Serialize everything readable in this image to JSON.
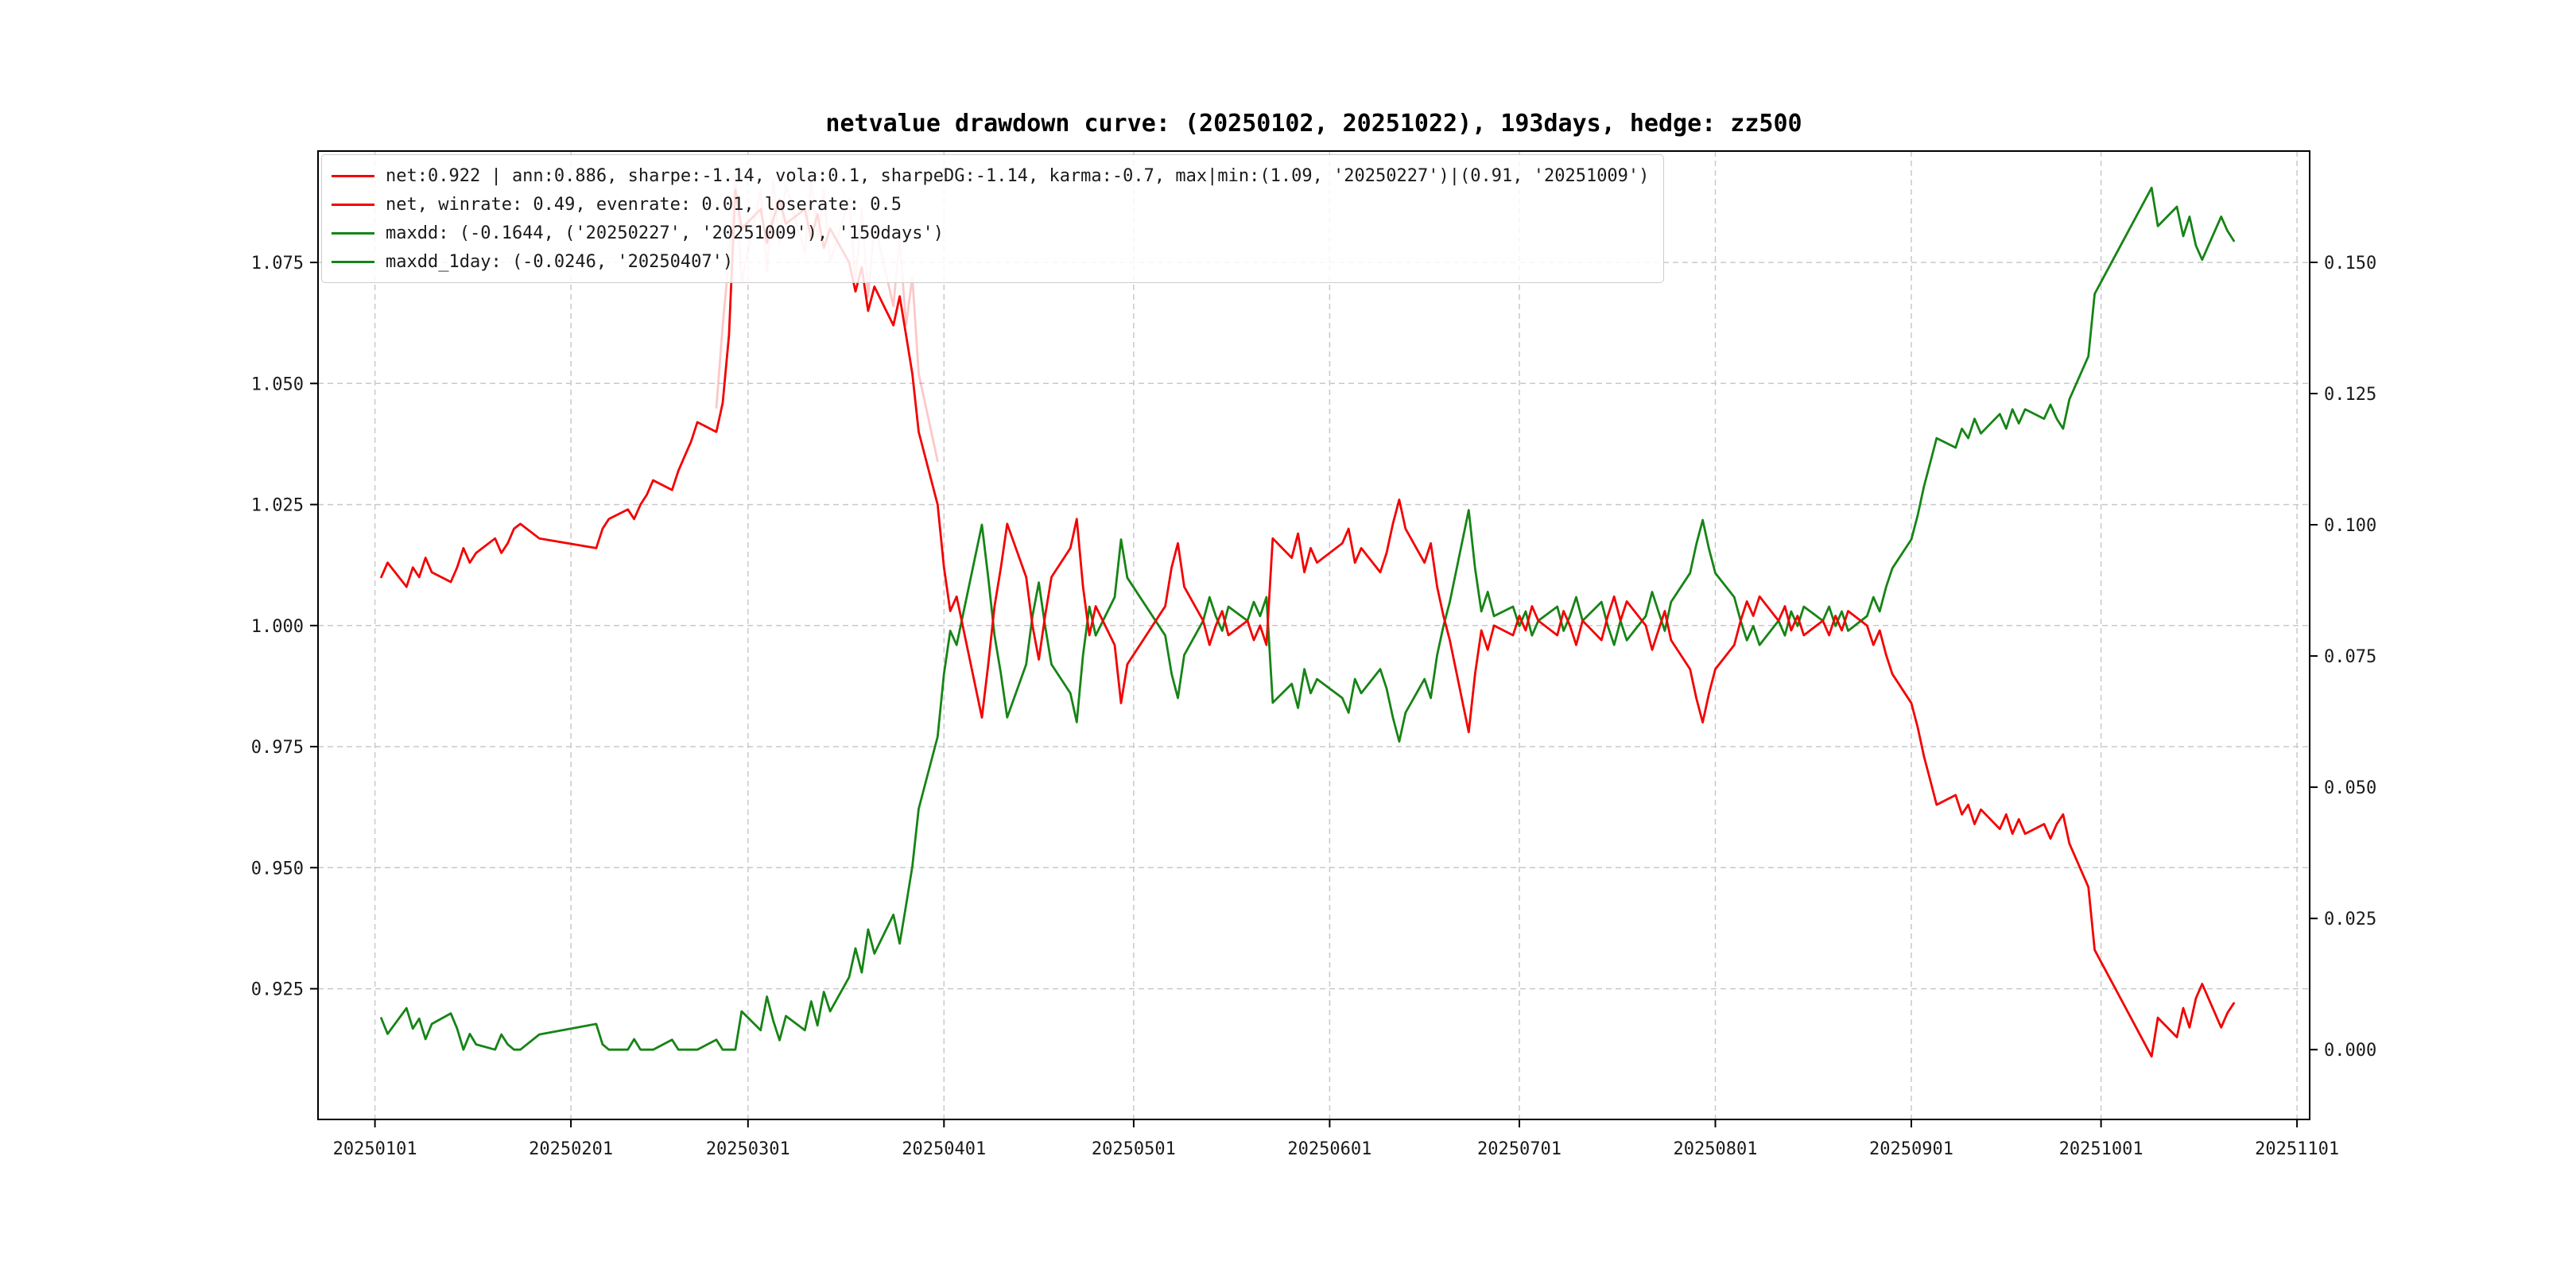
{
  "figure": {
    "background": "#ffffff"
  },
  "chart_data": {
    "type": "line",
    "title": "netvalue drawdown curve: (20250102, 20251022), 193days, hedge: zz500",
    "legend": {
      "position": "upper-left",
      "items": [
        {
          "label": "net:0.922 | ann:0.886, sharpe:-1.14, vola:0.1, sharpeDG:-1.14, karma:-0.7, max|min:(1.09, '20250227')|(0.91, '20251009')",
          "color": "#f40000",
          "opacity": 1
        },
        {
          "label": "net, winrate: 0.49, evenrate: 0.01, loserate: 0.5",
          "color": "#f40000",
          "opacity": 1
        },
        {
          "label": "maxdd: (-0.1644, ('20250227', '20251009'), '150days')",
          "color": "#168416",
          "opacity": 1
        },
        {
          "label": "maxdd_1day: (-0.0246, '20250407')",
          "color": "#168416",
          "opacity": 1
        }
      ]
    },
    "x_axis": {
      "tick_labels": [
        "20250101",
        "20250201",
        "20250301",
        "20250401",
        "20250501",
        "20250601",
        "20250701",
        "20250801",
        "20250901",
        "20251001",
        "20251101"
      ],
      "lim_days": [
        -9,
        306
      ],
      "epoch": "20250101"
    },
    "left_axis": {
      "ticks": [
        1.075,
        1.05,
        1.025,
        1.0,
        0.975,
        0.95,
        0.925
      ],
      "labels": [
        "1.075",
        "1.050",
        "1.025",
        "1.000",
        "0.975",
        "0.950",
        "0.925"
      ],
      "lim": [
        0.898,
        1.098
      ]
    },
    "right_axis": {
      "ticks": [
        0.15,
        0.125,
        0.1,
        0.075,
        0.05,
        0.025,
        0.0
      ],
      "labels": [
        "0.150",
        "0.125",
        "0.100",
        "0.075",
        "0.050",
        "0.025",
        "0.000"
      ],
      "lim": [
        -0.0133,
        0.1712
      ]
    },
    "grid": {
      "on": true,
      "color": "#c9c9c9",
      "dash": "7 5"
    },
    "colors": {
      "net": "#f40000",
      "net_shadow": "#f40000",
      "maxdd": "#168416"
    },
    "points_schema": [
      "date",
      "net_value_left_axis",
      "drawdown_right_axis"
    ],
    "points": [
      [
        "20250102",
        1.01,
        0.006
      ],
      [
        "20250103",
        1.013,
        0.003
      ],
      [
        "20250106",
        1.008,
        0.0079
      ],
      [
        "20250107",
        1.012,
        0.004
      ],
      [
        "20250108",
        1.01,
        0.0059
      ],
      [
        "20250109",
        1.014,
        0.002
      ],
      [
        "20250110",
        1.011,
        0.0049
      ],
      [
        "20250113",
        1.009,
        0.0069
      ],
      [
        "20250114",
        1.012,
        0.004
      ],
      [
        "20250115",
        1.016,
        0.0
      ],
      [
        "20250116",
        1.013,
        0.003
      ],
      [
        "20250117",
        1.015,
        0.001
      ],
      [
        "20250120",
        1.018,
        0.0
      ],
      [
        "20250121",
        1.015,
        0.0029
      ],
      [
        "20250122",
        1.017,
        0.001
      ],
      [
        "20250123",
        1.02,
        0.0
      ],
      [
        "20250124",
        1.021,
        0.0
      ],
      [
        "20250127",
        1.018,
        0.0029
      ],
      [
        "20250205",
        1.016,
        0.0049
      ],
      [
        "20250206",
        1.02,
        0.001
      ],
      [
        "20250207",
        1.022,
        0.0
      ],
      [
        "20250210",
        1.024,
        0.0
      ],
      [
        "20250211",
        1.022,
        0.002
      ],
      [
        "20250212",
        1.025,
        0.0
      ],
      [
        "20250213",
        1.027,
        0.0
      ],
      [
        "20250214",
        1.03,
        0.0
      ],
      [
        "20250217",
        1.028,
        0.0019
      ],
      [
        "20250218",
        1.032,
        0.0
      ],
      [
        "20250219",
        1.035,
        0.0
      ],
      [
        "20250220",
        1.038,
        0.0
      ],
      [
        "20250221",
        1.042,
        0.0
      ],
      [
        "20250224",
        1.04,
        0.0019
      ],
      [
        "20250225",
        1.046,
        0.0
      ],
      [
        "20250226",
        1.06,
        0.0
      ],
      [
        "20250227",
        1.09,
        0.0
      ],
      [
        "20250228",
        1.082,
        0.0073
      ],
      [
        "20250303",
        1.086,
        0.0037
      ],
      [
        "20250304",
        1.079,
        0.0101
      ],
      [
        "20250305",
        1.084,
        0.0055
      ],
      [
        "20250306",
        1.088,
        0.0018
      ],
      [
        "20250307",
        1.083,
        0.0064
      ],
      [
        "20250310",
        1.086,
        0.0037
      ],
      [
        "20250311",
        1.08,
        0.0092
      ],
      [
        "20250312",
        1.085,
        0.0046
      ],
      [
        "20250313",
        1.078,
        0.011
      ],
      [
        "20250314",
        1.082,
        0.0073
      ],
      [
        "20250317",
        1.075,
        0.0138
      ],
      [
        "20250318",
        1.069,
        0.0193
      ],
      [
        "20250319",
        1.074,
        0.0147
      ],
      [
        "20250320",
        1.065,
        0.0229
      ],
      [
        "20250321",
        1.07,
        0.0183
      ],
      [
        "20250324",
        1.062,
        0.0257
      ],
      [
        "20250325",
        1.068,
        0.0202
      ],
      [
        "20250326",
        1.06,
        0.0275
      ],
      [
        "20250327",
        1.052,
        0.0349
      ],
      [
        "20250328",
        1.04,
        0.0459
      ],
      [
        "20250331",
        1.025,
        0.0596
      ],
      [
        "20250401",
        1.012,
        0.0716
      ],
      [
        "20250402",
        1.003,
        0.0798
      ],
      [
        "20250403",
        1.006,
        0.0771
      ],
      [
        "20250407",
        0.981,
        0.1
      ],
      [
        "20250408",
        0.992,
        0.0899
      ],
      [
        "20250409",
        1.004,
        0.0789
      ],
      [
        "20250410",
        1.012,
        0.0716
      ],
      [
        "20250411",
        1.021,
        0.0633
      ],
      [
        "20250414",
        1.01,
        0.0734
      ],
      [
        "20250415",
        1.0,
        0.0826
      ],
      [
        "20250416",
        0.993,
        0.089
      ],
      [
        "20250417",
        1.002,
        0.0807
      ],
      [
        "20250418",
        1.01,
        0.0734
      ],
      [
        "20250421",
        1.016,
        0.0679
      ],
      [
        "20250422",
        1.022,
        0.0624
      ],
      [
        "20250423",
        1.008,
        0.0752
      ],
      [
        "20250424",
        0.998,
        0.0844
      ],
      [
        "20250425",
        1.004,
        0.0789
      ],
      [
        "20250428",
        0.996,
        0.0862
      ],
      [
        "20250429",
        0.984,
        0.0972
      ],
      [
        "20250430",
        0.992,
        0.0899
      ],
      [
        "20250506",
        1.004,
        0.0789
      ],
      [
        "20250507",
        1.012,
        0.0716
      ],
      [
        "20250508",
        1.017,
        0.067
      ],
      [
        "20250509",
        1.008,
        0.0752
      ],
      [
        "20250512",
        1.001,
        0.0817
      ],
      [
        "20250513",
        0.996,
        0.0862
      ],
      [
        "20250514",
        1.0,
        0.0826
      ],
      [
        "20250515",
        1.003,
        0.0798
      ],
      [
        "20250516",
        0.998,
        0.0844
      ],
      [
        "20250519",
        1.001,
        0.0817
      ],
      [
        "20250520",
        0.997,
        0.0853
      ],
      [
        "20250521",
        1.0,
        0.0826
      ],
      [
        "20250522",
        0.996,
        0.0862
      ],
      [
        "20250523",
        1.018,
        0.0661
      ],
      [
        "20250526",
        1.014,
        0.0697
      ],
      [
        "20250527",
        1.019,
        0.0651
      ],
      [
        "20250528",
        1.011,
        0.0725
      ],
      [
        "20250529",
        1.016,
        0.0679
      ],
      [
        "20250530",
        1.013,
        0.0706
      ],
      [
        "20250603",
        1.017,
        0.067
      ],
      [
        "20250604",
        1.02,
        0.0642
      ],
      [
        "20250605",
        1.013,
        0.0706
      ],
      [
        "20250606",
        1.016,
        0.0679
      ],
      [
        "20250609",
        1.011,
        0.0725
      ],
      [
        "20250610",
        1.015,
        0.0688
      ],
      [
        "20250611",
        1.021,
        0.0633
      ],
      [
        "20250612",
        1.026,
        0.0587
      ],
      [
        "20250613",
        1.02,
        0.0642
      ],
      [
        "20250616",
        1.013,
        0.0706
      ],
      [
        "20250617",
        1.017,
        0.067
      ],
      [
        "20250618",
        1.008,
        0.0752
      ],
      [
        "20250619",
        1.002,
        0.0807
      ],
      [
        "20250620",
        0.997,
        0.0853
      ],
      [
        "20250623",
        0.978,
        0.1028
      ],
      [
        "20250624",
        0.99,
        0.0917
      ],
      [
        "20250625",
        0.999,
        0.0835
      ],
      [
        "20250626",
        0.995,
        0.0872
      ],
      [
        "20250627",
        1.0,
        0.0826
      ],
      [
        "20250630",
        0.998,
        0.0844
      ],
      [
        "20250701",
        1.002,
        0.0807
      ],
      [
        "20250702",
        0.999,
        0.0835
      ],
      [
        "20250703",
        1.004,
        0.0789
      ],
      [
        "20250704",
        1.001,
        0.0817
      ],
      [
        "20250707",
        0.998,
        0.0844
      ],
      [
        "20250708",
        1.003,
        0.0798
      ],
      [
        "20250709",
        1.0,
        0.0826
      ],
      [
        "20250710",
        0.996,
        0.0862
      ],
      [
        "20250711",
        1.001,
        0.0817
      ],
      [
        "20250714",
        0.997,
        0.0853
      ],
      [
        "20250715",
        1.002,
        0.0807
      ],
      [
        "20250716",
        1.006,
        0.0771
      ],
      [
        "20250717",
        1.001,
        0.0817
      ],
      [
        "20250718",
        1.005,
        0.078
      ],
      [
        "20250721",
        1.0,
        0.0826
      ],
      [
        "20250722",
        0.995,
        0.0872
      ],
      [
        "20250723",
        0.999,
        0.0835
      ],
      [
        "20250724",
        1.003,
        0.0798
      ],
      [
        "20250725",
        0.997,
        0.0853
      ],
      [
        "20250728",
        0.991,
        0.0908
      ],
      [
        "20250729",
        0.985,
        0.0963
      ],
      [
        "20250730",
        0.98,
        0.1009
      ],
      [
        "20250731",
        0.986,
        0.0954
      ],
      [
        "20250801",
        0.991,
        0.0908
      ],
      [
        "20250804",
        0.996,
        0.0862
      ],
      [
        "20250805",
        1.001,
        0.0817
      ],
      [
        "20250806",
        1.005,
        0.078
      ],
      [
        "20250807",
        1.002,
        0.0807
      ],
      [
        "20250808",
        1.006,
        0.0771
      ],
      [
        "20250811",
        1.001,
        0.0817
      ],
      [
        "20250812",
        1.004,
        0.0789
      ],
      [
        "20250813",
        0.999,
        0.0835
      ],
      [
        "20250814",
        1.002,
        0.0807
      ],
      [
        "20250815",
        0.998,
        0.0844
      ],
      [
        "20250818",
        1.001,
        0.0817
      ],
      [
        "20250819",
        0.998,
        0.0844
      ],
      [
        "20250820",
        1.002,
        0.0807
      ],
      [
        "20250821",
        0.999,
        0.0835
      ],
      [
        "20250822",
        1.003,
        0.0798
      ],
      [
        "20250825",
        1.0,
        0.0826
      ],
      [
        "20250826",
        0.996,
        0.0862
      ],
      [
        "20250827",
        0.999,
        0.0835
      ],
      [
        "20250828",
        0.994,
        0.0881
      ],
      [
        "20250829",
        0.99,
        0.0917
      ],
      [
        "20250901",
        0.984,
        0.0972
      ],
      [
        "20250902",
        0.979,
        0.1018
      ],
      [
        "20250903",
        0.973,
        0.1073
      ],
      [
        "20250904",
        0.968,
        0.1119
      ],
      [
        "20250905",
        0.963,
        0.1165
      ],
      [
        "20250908",
        0.965,
        0.1147
      ],
      [
        "20250909",
        0.961,
        0.1183
      ],
      [
        "20250910",
        0.963,
        0.1165
      ],
      [
        "20250911",
        0.959,
        0.1202
      ],
      [
        "20250912",
        0.962,
        0.1174
      ],
      [
        "20250915",
        0.958,
        0.1211
      ],
      [
        "20250916",
        0.961,
        0.1183
      ],
      [
        "20250917",
        0.957,
        0.122
      ],
      [
        "20250918",
        0.96,
        0.1193
      ],
      [
        "20250919",
        0.957,
        0.122
      ],
      [
        "20250922",
        0.959,
        0.1202
      ],
      [
        "20250923",
        0.956,
        0.1229
      ],
      [
        "20250924",
        0.959,
        0.1202
      ],
      [
        "20250925",
        0.961,
        0.1183
      ],
      [
        "20250926",
        0.955,
        0.1239
      ],
      [
        "20250929",
        0.946,
        0.1321
      ],
      [
        "20250930",
        0.933,
        0.144
      ],
      [
        "20251009",
        0.911,
        0.1642
      ],
      [
        "20251010",
        0.919,
        0.1569
      ],
      [
        "20251013",
        0.915,
        0.1606
      ],
      [
        "20251014",
        0.921,
        0.155
      ],
      [
        "20251015",
        0.917,
        0.1587
      ],
      [
        "20251016",
        0.923,
        0.1532
      ],
      [
        "20251017",
        0.926,
        0.1505
      ],
      [
        "20251020",
        0.917,
        0.1587
      ],
      [
        "20251021",
        0.92,
        0.156
      ],
      [
        "20251022",
        0.922,
        0.1541
      ]
    ],
    "shadow_points_schema": [
      "date",
      "net_value_left_axis"
    ],
    "shadow_points": [
      [
        "20250224",
        1.045
      ],
      [
        "20250225",
        1.062
      ],
      [
        "20250226",
        1.076
      ],
      [
        "20250227",
        1.093
      ],
      [
        "20250228",
        1.071
      ],
      [
        "20250303",
        1.09
      ],
      [
        "20250304",
        1.073
      ],
      [
        "20250305",
        1.092
      ],
      [
        "20250306",
        1.079
      ],
      [
        "20250307",
        1.091
      ],
      [
        "20250310",
        1.077
      ],
      [
        "20250311",
        1.092
      ],
      [
        "20250312",
        1.08
      ],
      [
        "20250313",
        1.09
      ],
      [
        "20250314",
        1.075
      ],
      [
        "20250317",
        1.088
      ],
      [
        "20250318",
        1.071
      ],
      [
        "20250319",
        1.086
      ],
      [
        "20250320",
        1.068
      ],
      [
        "20250321",
        1.083
      ],
      [
        "20250324",
        1.066
      ],
      [
        "20250325",
        1.08
      ],
      [
        "20250326",
        1.062
      ],
      [
        "20250327",
        1.072
      ],
      [
        "20250328",
        1.052
      ],
      [
        "20250331",
        1.034
      ]
    ]
  }
}
